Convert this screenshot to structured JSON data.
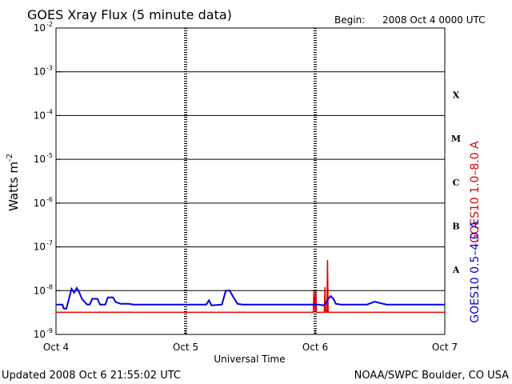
{
  "header": {
    "title": "GOES Xray Flux (5 minute data)",
    "begin_label": "Begin:",
    "begin_value": "2008 Oct 4 0000 UTC"
  },
  "footer": {
    "updated": "Updated 2008 Oct  6 21:55:02 UTC",
    "source": "NOAA/SWPC Boulder, CO USA"
  },
  "chart_data": {
    "type": "line",
    "title": "GOES Xray Flux (5 minute data)",
    "xlabel": "Universal Time",
    "ylabel_base": "Watts m",
    "ylabel_exp": "-2",
    "yscale": "log",
    "ylim": [
      1e-09,
      0.01
    ],
    "xlim_days": [
      0,
      3
    ],
    "x_ticks": [
      "Oct 4",
      "Oct 5",
      "Oct 6",
      "Oct 7"
    ],
    "y_ticks": [
      {
        "base": "10",
        "exp": "-2",
        "value": 0.01
      },
      {
        "base": "10",
        "exp": "-3",
        "value": 0.001
      },
      {
        "base": "10",
        "exp": "-4",
        "value": 0.0001
      },
      {
        "base": "10",
        "exp": "-5",
        "value": 1e-05
      },
      {
        "base": "10",
        "exp": "-6",
        "value": 1e-06
      },
      {
        "base": "10",
        "exp": "-7",
        "value": 1e-07
      },
      {
        "base": "10",
        "exp": "-8",
        "value": 1e-08
      },
      {
        "base": "10",
        "exp": "-9",
        "value": 1e-09
      }
    ],
    "flare_classes": [
      {
        "label": "X",
        "value": 0.0003
      },
      {
        "label": "M",
        "value": 3e-05
      },
      {
        "label": "C",
        "value": 3e-06
      },
      {
        "label": "B",
        "value": 3e-07
      },
      {
        "label": "A",
        "value": 3e-08
      }
    ],
    "grid": "horizontal lines at each decade from 1e-8 to 1e-3; dashed vertical day markers",
    "series": [
      {
        "name": "GOES10 1.0-8.0 A",
        "color": "#e00000",
        "points": [
          [
            0.0,
            3.2e-09
          ],
          [
            0.99,
            3.2e-09
          ],
          [
            1.02,
            3.2e-09
          ],
          [
            1.985,
            3.2e-09
          ],
          [
            1.99,
            1e-08
          ],
          [
            2.0,
            3.2e-09
          ],
          [
            2.005,
            1e-08
          ],
          [
            2.01,
            3.2e-09
          ],
          [
            2.07,
            3.2e-09
          ],
          [
            2.075,
            1.2e-08
          ],
          [
            2.08,
            3.2e-09
          ],
          [
            2.09,
            3.2e-09
          ],
          [
            2.095,
            5e-08
          ],
          [
            2.1,
            3.2e-09
          ],
          [
            3.0,
            3.2e-09
          ]
        ]
      },
      {
        "name": "GOES10 0.5-4.0 A",
        "color": "#0000e0",
        "points": [
          [
            0.0,
            4.8e-09
          ],
          [
            0.05,
            4.8e-09
          ],
          [
            0.06,
            3.9e-09
          ],
          [
            0.08,
            3.9e-09
          ],
          [
            0.1,
            6.5e-09
          ],
          [
            0.12,
            1.1e-08
          ],
          [
            0.14,
            9e-09
          ],
          [
            0.16,
            1.15e-08
          ],
          [
            0.18,
            9e-09
          ],
          [
            0.2,
            6.5e-09
          ],
          [
            0.24,
            4.8e-09
          ],
          [
            0.26,
            4.8e-09
          ],
          [
            0.28,
            6.5e-09
          ],
          [
            0.32,
            6.5e-09
          ],
          [
            0.34,
            4.8e-09
          ],
          [
            0.38,
            4.8e-09
          ],
          [
            0.4,
            7e-09
          ],
          [
            0.44,
            7e-09
          ],
          [
            0.46,
            5.5e-09
          ],
          [
            0.5,
            5e-09
          ],
          [
            0.56,
            5e-09
          ],
          [
            0.6,
            4.8e-09
          ],
          [
            0.99,
            4.8e-09
          ],
          [
            1.02,
            4.8e-09
          ],
          [
            1.16,
            4.8e-09
          ],
          [
            1.18,
            6e-09
          ],
          [
            1.2,
            4.6e-09
          ],
          [
            1.28,
            4.8e-09
          ],
          [
            1.31,
            1e-08
          ],
          [
            1.34,
            1e-08
          ],
          [
            1.37,
            7e-09
          ],
          [
            1.4,
            5e-09
          ],
          [
            1.44,
            4.8e-09
          ],
          [
            1.99,
            4.8e-09
          ],
          [
            2.0,
            4.8e-09
          ],
          [
            2.03,
            4.8e-09
          ],
          [
            2.06,
            4.6e-09
          ],
          [
            2.08,
            5e-09
          ],
          [
            2.1,
            6.5e-09
          ],
          [
            2.12,
            7.5e-09
          ],
          [
            2.14,
            6.5e-09
          ],
          [
            2.16,
            5e-09
          ],
          [
            2.2,
            4.8e-09
          ],
          [
            2.4,
            4.8e-09
          ],
          [
            2.46,
            5.6e-09
          ],
          [
            2.5,
            5.2e-09
          ],
          [
            2.55,
            4.8e-09
          ],
          [
            3.0,
            4.8e-09
          ]
        ]
      }
    ],
    "right_labels": {
      "red": "GOES10 1.0–8.0 A",
      "blue": "GOES10 0.5–4.0 A"
    }
  }
}
